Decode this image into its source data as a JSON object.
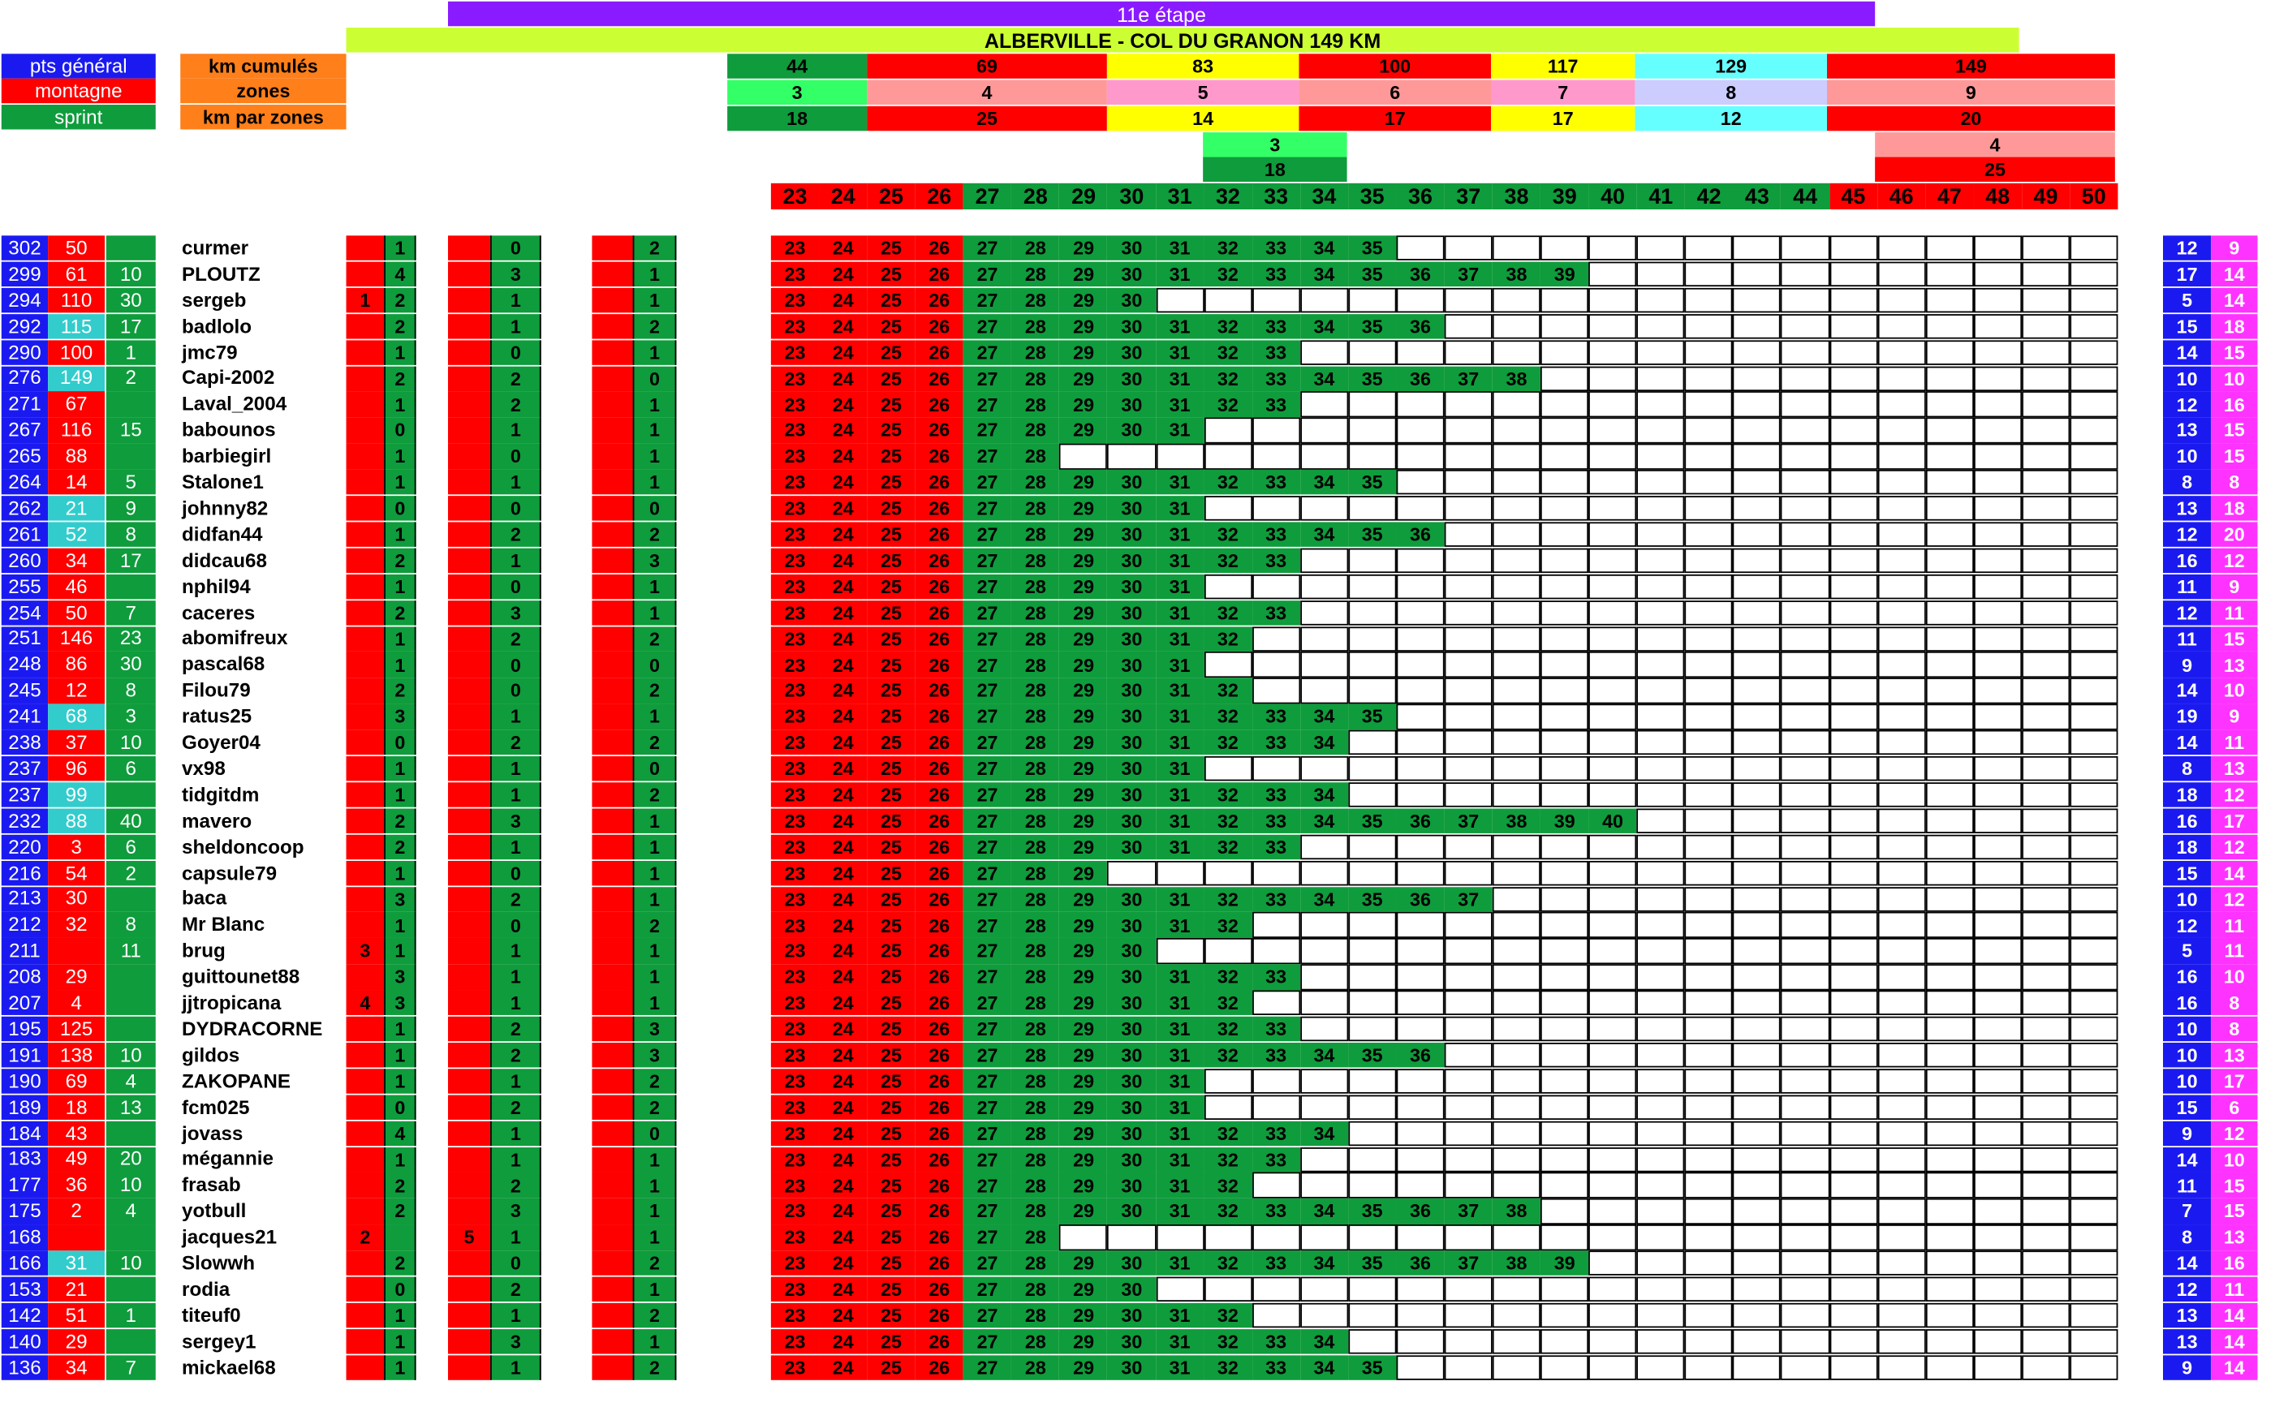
{
  "header": {
    "stage": "11e étape",
    "route": "ALBERVILLE - COL DU GRANON 149 KM"
  },
  "legend": {
    "general": "pts général",
    "mountain": "montagne",
    "sprint": "sprint",
    "km_cumul": "km cumulés",
    "zones": "zones",
    "km_zones": "km par zones"
  },
  "colors": {
    "general": "#1a1af0",
    "mountain": "#ff0000",
    "sprint": "#0f9c3c",
    "orange": "#ff7f1a",
    "purple": "#8a1aff",
    "lime": "#ccff33",
    "magenta": "#ff33ff",
    "cyan": "#33cccc"
  },
  "zone_table": {
    "km_cumul": [
      "44",
      "69",
      "83",
      "100",
      "117",
      "129",
      "149"
    ],
    "zones": [
      "3",
      "4",
      "5",
      "6",
      "7",
      "8",
      "9"
    ],
    "km_zones": [
      "18",
      "25",
      "14",
      "17",
      "17",
      "12",
      "20"
    ],
    "zone_colors": [
      "#0f9c3c",
      "#ff0000",
      "#ffff00",
      "#ff0000",
      "#ffff00",
      "#66ffff",
      "#ff0000"
    ],
    "zone_row_colors": [
      "#33ff66",
      "#ff9999",
      "#ff99cc",
      "#ff9999",
      "#ff99cc",
      "#ccccff",
      "#ff9999"
    ],
    "extra_left": {
      "zone": "3",
      "km": "18"
    },
    "extra_right": {
      "zone": "4",
      "km": "25"
    }
  },
  "scale_numbers": [
    "23",
    "24",
    "25",
    "26",
    "27",
    "28",
    "29",
    "30",
    "31",
    "32",
    "33",
    "34",
    "35",
    "36",
    "37",
    "38",
    "39",
    "40",
    "41",
    "42",
    "43",
    "44",
    "45",
    "46",
    "47",
    "48",
    "49",
    "50"
  ],
  "players": [
    {
      "pts": "302",
      "mont": "50",
      "sprint": "",
      "name": "curmer",
      "b1": "",
      "c1": "1",
      "b2": "",
      "c2": "0",
      "b3": "",
      "c3": "2",
      "reach": 35,
      "r1": "12",
      "r2": "9"
    },
    {
      "pts": "299",
      "mont": "61",
      "sprint": "10",
      "name": "PLOUTZ",
      "b1": "",
      "c1": "4",
      "b2": "",
      "c2": "3",
      "b3": "",
      "c3": "1",
      "reach": 39,
      "r1": "17",
      "r2": "14"
    },
    {
      "pts": "294",
      "mont": "110",
      "sprint": "30",
      "name": "sergeb",
      "b1": "1",
      "c1": "2",
      "b2": "",
      "c2": "1",
      "b3": "",
      "c3": "1",
      "reach": 30,
      "r1": "5",
      "r2": "14"
    },
    {
      "pts": "292",
      "mont": "115",
      "sprint": "17",
      "name": "badlolo",
      "b1": "",
      "c1": "2",
      "b2": "",
      "c2": "1",
      "b3": "",
      "c3": "2",
      "reach": 36,
      "r1": "15",
      "r2": "18",
      "cyan": true
    },
    {
      "pts": "290",
      "mont": "100",
      "sprint": "1",
      "name": "jmc79",
      "b1": "",
      "c1": "1",
      "b2": "",
      "c2": "0",
      "b3": "",
      "c3": "1",
      "reach": 33,
      "r1": "14",
      "r2": "15"
    },
    {
      "pts": "276",
      "mont": "149",
      "sprint": "2",
      "name": "Capi-2002",
      "b1": "",
      "c1": "2",
      "b2": "",
      "c2": "2",
      "b3": "",
      "c3": "0",
      "reach": 38,
      "r1": "10",
      "r2": "10",
      "cyan": true
    },
    {
      "pts": "271",
      "mont": "67",
      "sprint": "",
      "name": "Laval_2004",
      "b1": "",
      "c1": "1",
      "b2": "",
      "c2": "2",
      "b3": "",
      "c3": "1",
      "reach": 33,
      "r1": "12",
      "r2": "16"
    },
    {
      "pts": "267",
      "mont": "116",
      "sprint": "15",
      "name": "babounos",
      "b1": "",
      "c1": "0",
      "b2": "",
      "c2": "1",
      "b3": "",
      "c3": "1",
      "reach": 31,
      "r1": "13",
      "r2": "15"
    },
    {
      "pts": "265",
      "mont": "88",
      "sprint": "",
      "name": "barbiegirl",
      "b1": "",
      "c1": "1",
      "b2": "",
      "c2": "0",
      "b3": "",
      "c3": "1",
      "reach": 28,
      "r1": "10",
      "r2": "15"
    },
    {
      "pts": "264",
      "mont": "14",
      "sprint": "5",
      "name": "Stalone1",
      "b1": "",
      "c1": "1",
      "b2": "",
      "c2": "1",
      "b3": "",
      "c3": "1",
      "reach": 35,
      "r1": "8",
      "r2": "8"
    },
    {
      "pts": "262",
      "mont": "21",
      "sprint": "9",
      "name": "johnny82",
      "b1": "",
      "c1": "0",
      "b2": "",
      "c2": "0",
      "b3": "",
      "c3": "0",
      "reach": 31,
      "r1": "13",
      "r2": "18",
      "cyan": true
    },
    {
      "pts": "261",
      "mont": "52",
      "sprint": "8",
      "name": "didfan44",
      "b1": "",
      "c1": "1",
      "b2": "",
      "c2": "2",
      "b3": "",
      "c3": "2",
      "reach": 36,
      "r1": "12",
      "r2": "20",
      "cyan": true
    },
    {
      "pts": "260",
      "mont": "34",
      "sprint": "17",
      "name": "didcau68",
      "b1": "",
      "c1": "2",
      "b2": "",
      "c2": "1",
      "b3": "",
      "c3": "3",
      "reach": 33,
      "r1": "16",
      "r2": "12"
    },
    {
      "pts": "255",
      "mont": "46",
      "sprint": "",
      "name": "nphil94",
      "b1": "",
      "c1": "1",
      "b2": "",
      "c2": "0",
      "b3": "",
      "c3": "1",
      "reach": 31,
      "r1": "11",
      "r2": "9"
    },
    {
      "pts": "254",
      "mont": "50",
      "sprint": "7",
      "name": "caceres",
      "b1": "",
      "c1": "2",
      "b2": "",
      "c2": "3",
      "b3": "",
      "c3": "1",
      "reach": 33,
      "r1": "12",
      "r2": "11"
    },
    {
      "pts": "251",
      "mont": "146",
      "sprint": "23",
      "name": "abomifreux",
      "b1": "",
      "c1": "1",
      "b2": "",
      "c2": "2",
      "b3": "",
      "c3": "2",
      "reach": 32,
      "r1": "11",
      "r2": "15"
    },
    {
      "pts": "248",
      "mont": "86",
      "sprint": "30",
      "name": "pascal68",
      "b1": "",
      "c1": "1",
      "b2": "",
      "c2": "0",
      "b3": "",
      "c3": "0",
      "reach": 31,
      "r1": "9",
      "r2": "13"
    },
    {
      "pts": "245",
      "mont": "12",
      "sprint": "8",
      "name": "Filou79",
      "b1": "",
      "c1": "2",
      "b2": "",
      "c2": "0",
      "b3": "",
      "c3": "2",
      "reach": 32,
      "r1": "14",
      "r2": "10"
    },
    {
      "pts": "241",
      "mont": "68",
      "sprint": "3",
      "name": "ratus25",
      "b1": "",
      "c1": "3",
      "b2": "",
      "c2": "1",
      "b3": "",
      "c3": "1",
      "reach": 35,
      "r1": "19",
      "r2": "9",
      "cyan": true
    },
    {
      "pts": "238",
      "mont": "37",
      "sprint": "10",
      "name": "Goyer04",
      "b1": "",
      "c1": "0",
      "b2": "",
      "c2": "2",
      "b3": "",
      "c3": "2",
      "reach": 34,
      "r1": "14",
      "r2": "11"
    },
    {
      "pts": "237",
      "mont": "96",
      "sprint": "6",
      "name": "vx98",
      "b1": "",
      "c1": "1",
      "b2": "",
      "c2": "1",
      "b3": "",
      "c3": "0",
      "reach": 31,
      "r1": "8",
      "r2": "13"
    },
    {
      "pts": "237",
      "mont": "99",
      "sprint": "",
      "name": "tidgitdm",
      "b1": "",
      "c1": "1",
      "b2": "",
      "c2": "1",
      "b3": "",
      "c3": "2",
      "reach": 34,
      "r1": "18",
      "r2": "12",
      "cyan": true
    },
    {
      "pts": "232",
      "mont": "88",
      "sprint": "40",
      "name": "mavero",
      "b1": "",
      "c1": "2",
      "b2": "",
      "c2": "3",
      "b3": "",
      "c3": "1",
      "reach": 40,
      "r1": "16",
      "r2": "17",
      "cyan": true
    },
    {
      "pts": "220",
      "mont": "3",
      "sprint": "6",
      "name": "sheldoncoop",
      "b1": "",
      "c1": "2",
      "b2": "",
      "c2": "1",
      "b3": "",
      "c3": "1",
      "reach": 33,
      "r1": "18",
      "r2": "12"
    },
    {
      "pts": "216",
      "mont": "54",
      "sprint": "2",
      "name": "capsule79",
      "b1": "",
      "c1": "1",
      "b2": "",
      "c2": "0",
      "b3": "",
      "c3": "1",
      "reach": 29,
      "r1": "15",
      "r2": "14"
    },
    {
      "pts": "213",
      "mont": "30",
      "sprint": "",
      "name": "baca",
      "b1": "",
      "c1": "3",
      "b2": "",
      "c2": "2",
      "b3": "",
      "c3": "1",
      "reach": 37,
      "r1": "10",
      "r2": "12"
    },
    {
      "pts": "212",
      "mont": "32",
      "sprint": "8",
      "name": "Mr Blanc",
      "b1": "",
      "c1": "1",
      "b2": "",
      "c2": "0",
      "b3": "",
      "c3": "2",
      "reach": 32,
      "r1": "12",
      "r2": "11"
    },
    {
      "pts": "211",
      "mont": "",
      "sprint": "11",
      "name": "brug",
      "b1": "3",
      "c1": "1",
      "b2": "",
      "c2": "1",
      "b3": "",
      "c3": "1",
      "reach": 30,
      "r1": "5",
      "r2": "11"
    },
    {
      "pts": "208",
      "mont": "29",
      "sprint": "",
      "name": "guittounet88",
      "b1": "",
      "c1": "3",
      "b2": "",
      "c2": "1",
      "b3": "",
      "c3": "1",
      "reach": 33,
      "r1": "16",
      "r2": "10"
    },
    {
      "pts": "207",
      "mont": "4",
      "sprint": "",
      "name": "jjtropicana",
      "b1": "4",
      "c1": "3",
      "b2": "",
      "c2": "1",
      "b3": "",
      "c3": "1",
      "reach": 32,
      "r1": "16",
      "r2": "8"
    },
    {
      "pts": "195",
      "mont": "125",
      "sprint": "",
      "name": "DYDRACORNE",
      "b1": "",
      "c1": "1",
      "b2": "",
      "c2": "2",
      "b3": "",
      "c3": "3",
      "reach": 33,
      "r1": "10",
      "r2": "8"
    },
    {
      "pts": "191",
      "mont": "138",
      "sprint": "10",
      "name": "gildos",
      "b1": "",
      "c1": "1",
      "b2": "",
      "c2": "2",
      "b3": "",
      "c3": "3",
      "reach": 36,
      "r1": "10",
      "r2": "13"
    },
    {
      "pts": "190",
      "mont": "69",
      "sprint": "4",
      "name": "ZAKOPANE",
      "b1": "",
      "c1": "1",
      "b2": "",
      "c2": "1",
      "b3": "",
      "c3": "2",
      "reach": 31,
      "r1": "10",
      "r2": "17"
    },
    {
      "pts": "189",
      "mont": "18",
      "sprint": "13",
      "name": "fcm025",
      "b1": "",
      "c1": "0",
      "b2": "",
      "c2": "2",
      "b3": "",
      "c3": "2",
      "reach": 31,
      "r1": "15",
      "r2": "6"
    },
    {
      "pts": "184",
      "mont": "43",
      "sprint": "",
      "name": "jovass",
      "b1": "",
      "c1": "4",
      "b2": "",
      "c2": "1",
      "b3": "",
      "c3": "0",
      "reach": 34,
      "r1": "9",
      "r2": "12"
    },
    {
      "pts": "183",
      "mont": "49",
      "sprint": "20",
      "name": "mégannie",
      "b1": "",
      "c1": "1",
      "b2": "",
      "c2": "1",
      "b3": "",
      "c3": "1",
      "reach": 33,
      "r1": "14",
      "r2": "10"
    },
    {
      "pts": "177",
      "mont": "36",
      "sprint": "10",
      "name": "frasab",
      "b1": "",
      "c1": "2",
      "b2": "",
      "c2": "2",
      "b3": "",
      "c3": "1",
      "reach": 32,
      "r1": "11",
      "r2": "15"
    },
    {
      "pts": "175",
      "mont": "2",
      "sprint": "4",
      "name": "yotbull",
      "b1": "",
      "c1": "2",
      "b2": "",
      "c2": "3",
      "b3": "",
      "c3": "1",
      "reach": 38,
      "r1": "7",
      "r2": "15"
    },
    {
      "pts": "168",
      "mont": "",
      "sprint": "",
      "name": "jacques21",
      "b1": "2",
      "c1": "",
      "b2": "5",
      "c2": "1",
      "b3": "",
      "c3": "1",
      "reach": 28,
      "r1": "8",
      "r2": "13"
    },
    {
      "pts": "166",
      "mont": "31",
      "sprint": "10",
      "name": "Slowwh",
      "b1": "",
      "c1": "2",
      "b2": "",
      "c2": "0",
      "b3": "",
      "c3": "2",
      "reach": 39,
      "r1": "14",
      "r2": "16",
      "cyan": true
    },
    {
      "pts": "153",
      "mont": "21",
      "sprint": "",
      "name": "rodia",
      "b1": "",
      "c1": "0",
      "b2": "",
      "c2": "2",
      "b3": "",
      "c3": "1",
      "reach": 30,
      "r1": "12",
      "r2": "11"
    },
    {
      "pts": "142",
      "mont": "51",
      "sprint": "1",
      "name": "titeuf0",
      "b1": "",
      "c1": "1",
      "b2": "",
      "c2": "1",
      "b3": "",
      "c3": "2",
      "reach": 32,
      "r1": "13",
      "r2": "14"
    },
    {
      "pts": "140",
      "mont": "29",
      "sprint": "",
      "name": "sergey1",
      "b1": "",
      "c1": "1",
      "b2": "",
      "c2": "3",
      "b3": "",
      "c3": "1",
      "reach": 34,
      "r1": "13",
      "r2": "14"
    },
    {
      "pts": "136",
      "mont": "34",
      "sprint": "7",
      "name": "mickael68",
      "b1": "",
      "c1": "1",
      "b2": "",
      "c2": "1",
      "b3": "",
      "c3": "2",
      "reach": 35,
      "r1": "9",
      "r2": "14"
    }
  ]
}
